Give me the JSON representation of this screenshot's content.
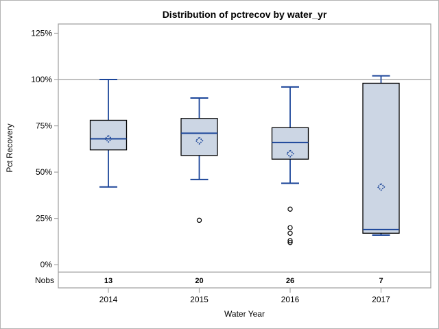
{
  "chart_data": {
    "type": "box",
    "title": "Distribution of pctrecov by water_yr",
    "xlabel": "Water Year",
    "ylabel": "Pct Recovery",
    "categories": [
      "2014",
      "2015",
      "2016",
      "2017"
    ],
    "y_ticks": [
      0,
      25,
      50,
      75,
      100,
      125
    ],
    "y_tick_suffix": "%",
    "ylim": [
      -4,
      130
    ],
    "reference_line": 100,
    "grid": "reference-line-only",
    "legend": "none",
    "nobs_label": "Nobs",
    "nobs": [
      13,
      20,
      26,
      7
    ],
    "series": [
      {
        "category": "2014",
        "n": 13,
        "whisker_low": 42,
        "q1": 62,
        "median": 68,
        "mean": 68,
        "q3": 78,
        "whisker_high": 100,
        "outliers": []
      },
      {
        "category": "2015",
        "n": 20,
        "whisker_low": 46,
        "q1": 59,
        "median": 71,
        "mean": 67,
        "q3": 79,
        "whisker_high": 90,
        "outliers": [
          24
        ]
      },
      {
        "category": "2016",
        "n": 26,
        "whisker_low": 44,
        "q1": 57,
        "median": 66,
        "mean": 60,
        "q3": 74,
        "whisker_high": 96,
        "outliers": [
          30,
          20,
          17,
          13,
          12
        ]
      },
      {
        "category": "2017",
        "n": 7,
        "whisker_low": 16,
        "q1": 17,
        "median": 19,
        "mean": 42,
        "q3": 98,
        "whisker_high": 102,
        "outliers": []
      }
    ],
    "colors": {
      "box_fill": "#ccd6e4",
      "box_border": "#000000",
      "line_blue": "#1b4599",
      "outlier": "#000000",
      "frame_gray": "#a3a3a3",
      "text": "#000000",
      "background": "#ffffff"
    }
  }
}
